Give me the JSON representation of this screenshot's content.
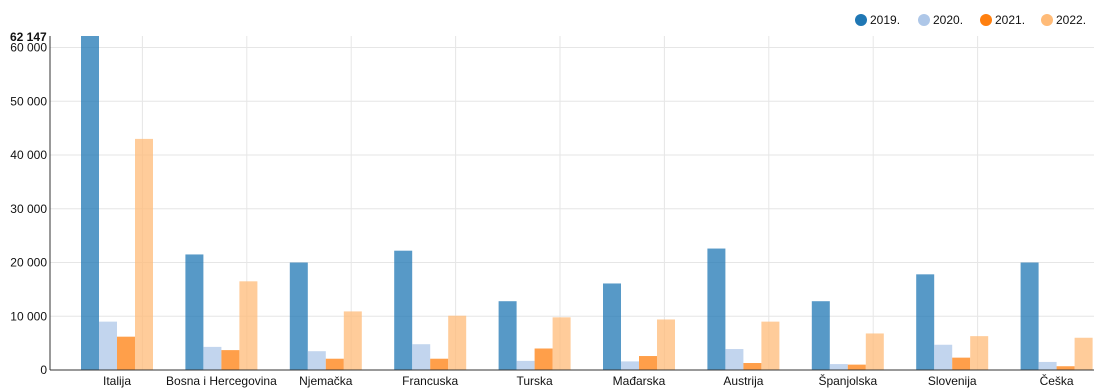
{
  "chart_data": {
    "type": "bar",
    "title": "",
    "xlabel": "",
    "ylabel": "",
    "categories": [
      "Italija",
      "Bosna i Hercegovina",
      "Njemačka",
      "Francuska",
      "Turska",
      "Mađarska",
      "Austrija",
      "Španjolska",
      "Slovenija",
      "Češka"
    ],
    "series": [
      {
        "name": "2019.",
        "color": "#1f77b4",
        "values": [
          62147,
          21500,
          20000,
          22200,
          12800,
          16100,
          22600,
          12800,
          17800,
          20000
        ]
      },
      {
        "name": "2020.",
        "color": "#aec7e8",
        "values": [
          9000,
          4300,
          3500,
          4800,
          1700,
          1600,
          3900,
          1100,
          4700,
          1500
        ]
      },
      {
        "name": "2021.",
        "color": "#ff7f0e",
        "values": [
          6200,
          3700,
          2100,
          2100,
          4000,
          2600,
          1300,
          1000,
          2300,
          700
        ]
      },
      {
        "name": "2022.",
        "color": "#ffbb78",
        "values": [
          43000,
          16500,
          10900,
          10100,
          9800,
          9400,
          9000,
          6800,
          6300,
          6000
        ]
      }
    ],
    "ylim": [
      0,
      62147
    ],
    "yticks": [
      0,
      10000,
      20000,
      30000,
      40000,
      50000,
      60000
    ],
    "ytick_labels": [
      "0",
      "10 000",
      "20 000",
      "30 000",
      "40 000",
      "50 000",
      "60 000"
    ],
    "max_label": "62 147",
    "legend_position": "top-right",
    "grid": true
  }
}
